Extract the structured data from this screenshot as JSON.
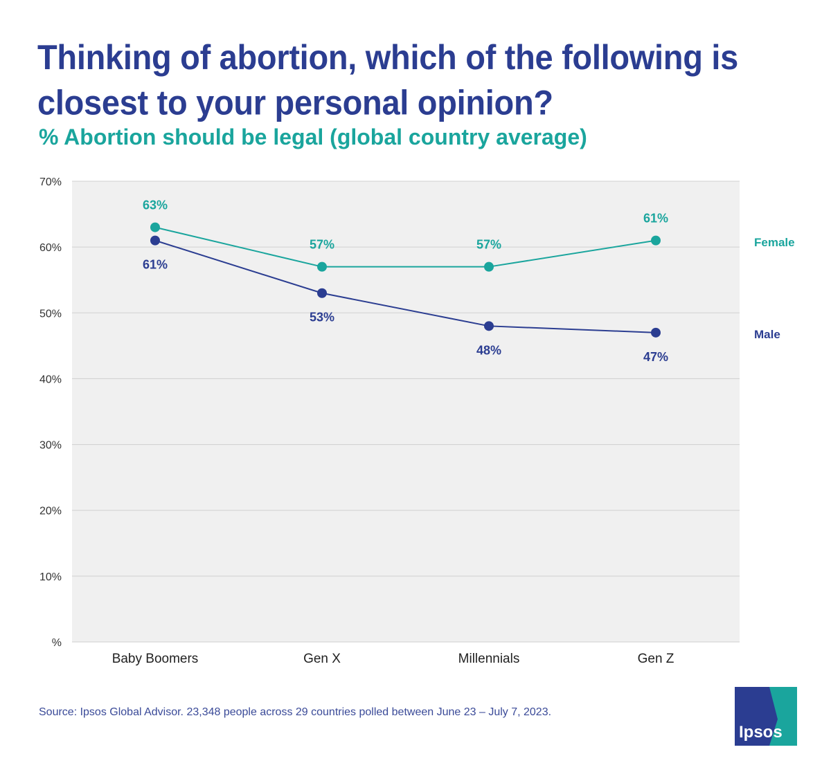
{
  "header": {
    "title": "Thinking of abortion, which of the following is closest to your personal opinion?",
    "subtitle": "% Abortion should be legal (global country average)"
  },
  "colors": {
    "female": "#1aa59d",
    "male": "#2b3d91",
    "plot_bg": "#f0f0f0",
    "gridline": "#cfcfcf"
  },
  "chart_data": {
    "type": "line",
    "categories": [
      "Baby Boomers",
      "Gen X",
      "Millennials",
      "Gen Z"
    ],
    "series": [
      {
        "name": "Female",
        "values": [
          63,
          57,
          57,
          61
        ],
        "labels": [
          "63%",
          "57%",
          "57%",
          "61%"
        ]
      },
      {
        "name": "Male",
        "values": [
          61,
          53,
          48,
          47
        ],
        "labels": [
          "61%",
          "53%",
          "48%",
          "47%"
        ]
      }
    ],
    "ylim": [
      0,
      70
    ],
    "yticks": [
      0,
      10,
      20,
      30,
      40,
      50,
      60,
      70
    ],
    "ytick_labels": [
      "%",
      "10%",
      "20%",
      "30%",
      "40%",
      "50%",
      "60%",
      "70%"
    ],
    "grid": true,
    "legend": "right (series names at line ends)"
  },
  "footer": {
    "source": "Source: Ipsos Global Advisor. 23,348 people across 29 countries polled between June 23 – July 7, 2023.",
    "logo_text": "Ipsos"
  }
}
